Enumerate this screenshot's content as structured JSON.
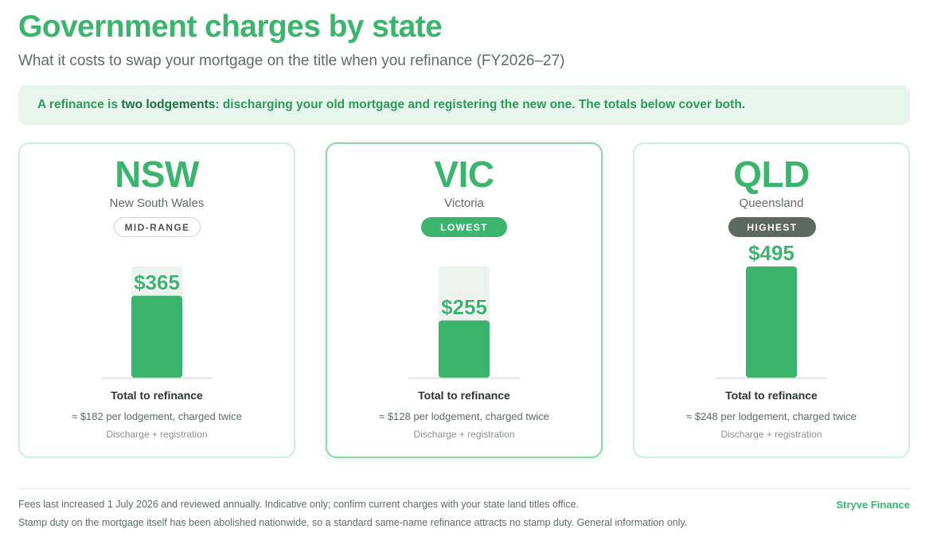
{
  "header": {
    "title": "Government charges by state",
    "subtitle": "What it costs to swap your mortgage on the title when you refinance (FY2026–27)"
  },
  "banner": {
    "prefix": "A refinance is ",
    "bold": "two lodgements",
    "suffix": ": discharging your old mortgage and registering the new one. The totals below cover both."
  },
  "colors": {
    "accent": "#3bb56e",
    "track": "#eef2ef",
    "baseline": "#d9dedb",
    "badge_high": "#5d6861"
  },
  "chart_data": {
    "type": "bar",
    "categories": [
      "NSW",
      "VIC",
      "QLD"
    ],
    "state_names": [
      "New South Wales",
      "Victoria",
      "Queensland"
    ],
    "badges": [
      "MID-RANGE",
      "LOWEST",
      "HIGHEST"
    ],
    "values": [
      365,
      255,
      495
    ],
    "value_labels": [
      "$365",
      "$255",
      "$495"
    ],
    "ylim": [
      0,
      495
    ],
    "captions": [
      "Total to refinance",
      "Total to refinance",
      "Total to refinance"
    ],
    "notes": [
      "≈ $182 per lodgement, charged twice",
      "≈ $128 per lodgement, charged twice",
      "≈ $248 per lodgement, charged twice"
    ],
    "subnotes": [
      "Discharge + registration",
      "Discharge + registration",
      "Discharge + registration"
    ]
  },
  "footer": {
    "line1": "Fees last increased 1 July 2026 and reviewed annually. Indicative only; confirm current charges with your state land titles office.",
    "line2": "Stamp duty on the mortgage itself has been abolished nationwide, so a standard same-name refinance attracts no stamp duty. General information only.",
    "brand": "Stryve Finance"
  }
}
